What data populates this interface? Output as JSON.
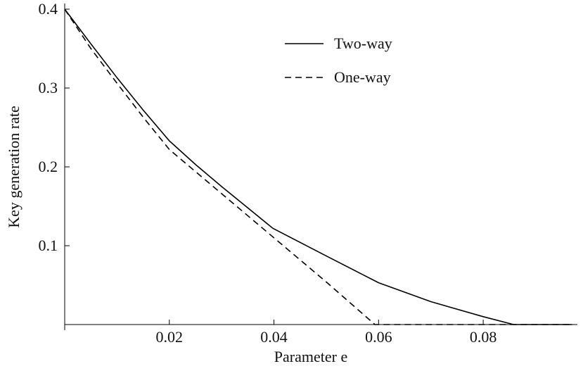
{
  "chart_data": {
    "type": "line",
    "x_label": "Parameter e",
    "y_label": "Key generation rate",
    "xlim": [
      0,
      0.098
    ],
    "ylim": [
      0,
      0.4
    ],
    "xticks": [
      0.02,
      0.04,
      0.06,
      0.08
    ],
    "yticks": [
      0.1,
      0.2,
      0.3,
      0.4
    ],
    "legend": "upper center",
    "series": [
      {
        "name": "Two-way",
        "color": "#000000",
        "dash": "solid",
        "x": [
          0,
          0.005,
          0.01,
          0.015,
          0.02,
          0.025,
          0.03,
          0.035,
          0.0398,
          0.05,
          0.06,
          0.07,
          0.08,
          0.0858,
          0.097
        ],
        "values": [
          0.4,
          0.356,
          0.313,
          0.272,
          0.233,
          0.203,
          0.175,
          0.148,
          0.122,
          0.087,
          0.053,
          0.029,
          0.01,
          0,
          0
        ]
      },
      {
        "name": "One-way",
        "color": "#000000",
        "dash": "dashed",
        "x": [
          0,
          0.005,
          0.01,
          0.015,
          0.02,
          0.03,
          0.04,
          0.05,
          0.0593,
          0.097
        ],
        "values": [
          0.4,
          0.35,
          0.306,
          0.263,
          0.222,
          0.166,
          0.11,
          0.054,
          0,
          0
        ]
      }
    ]
  }
}
